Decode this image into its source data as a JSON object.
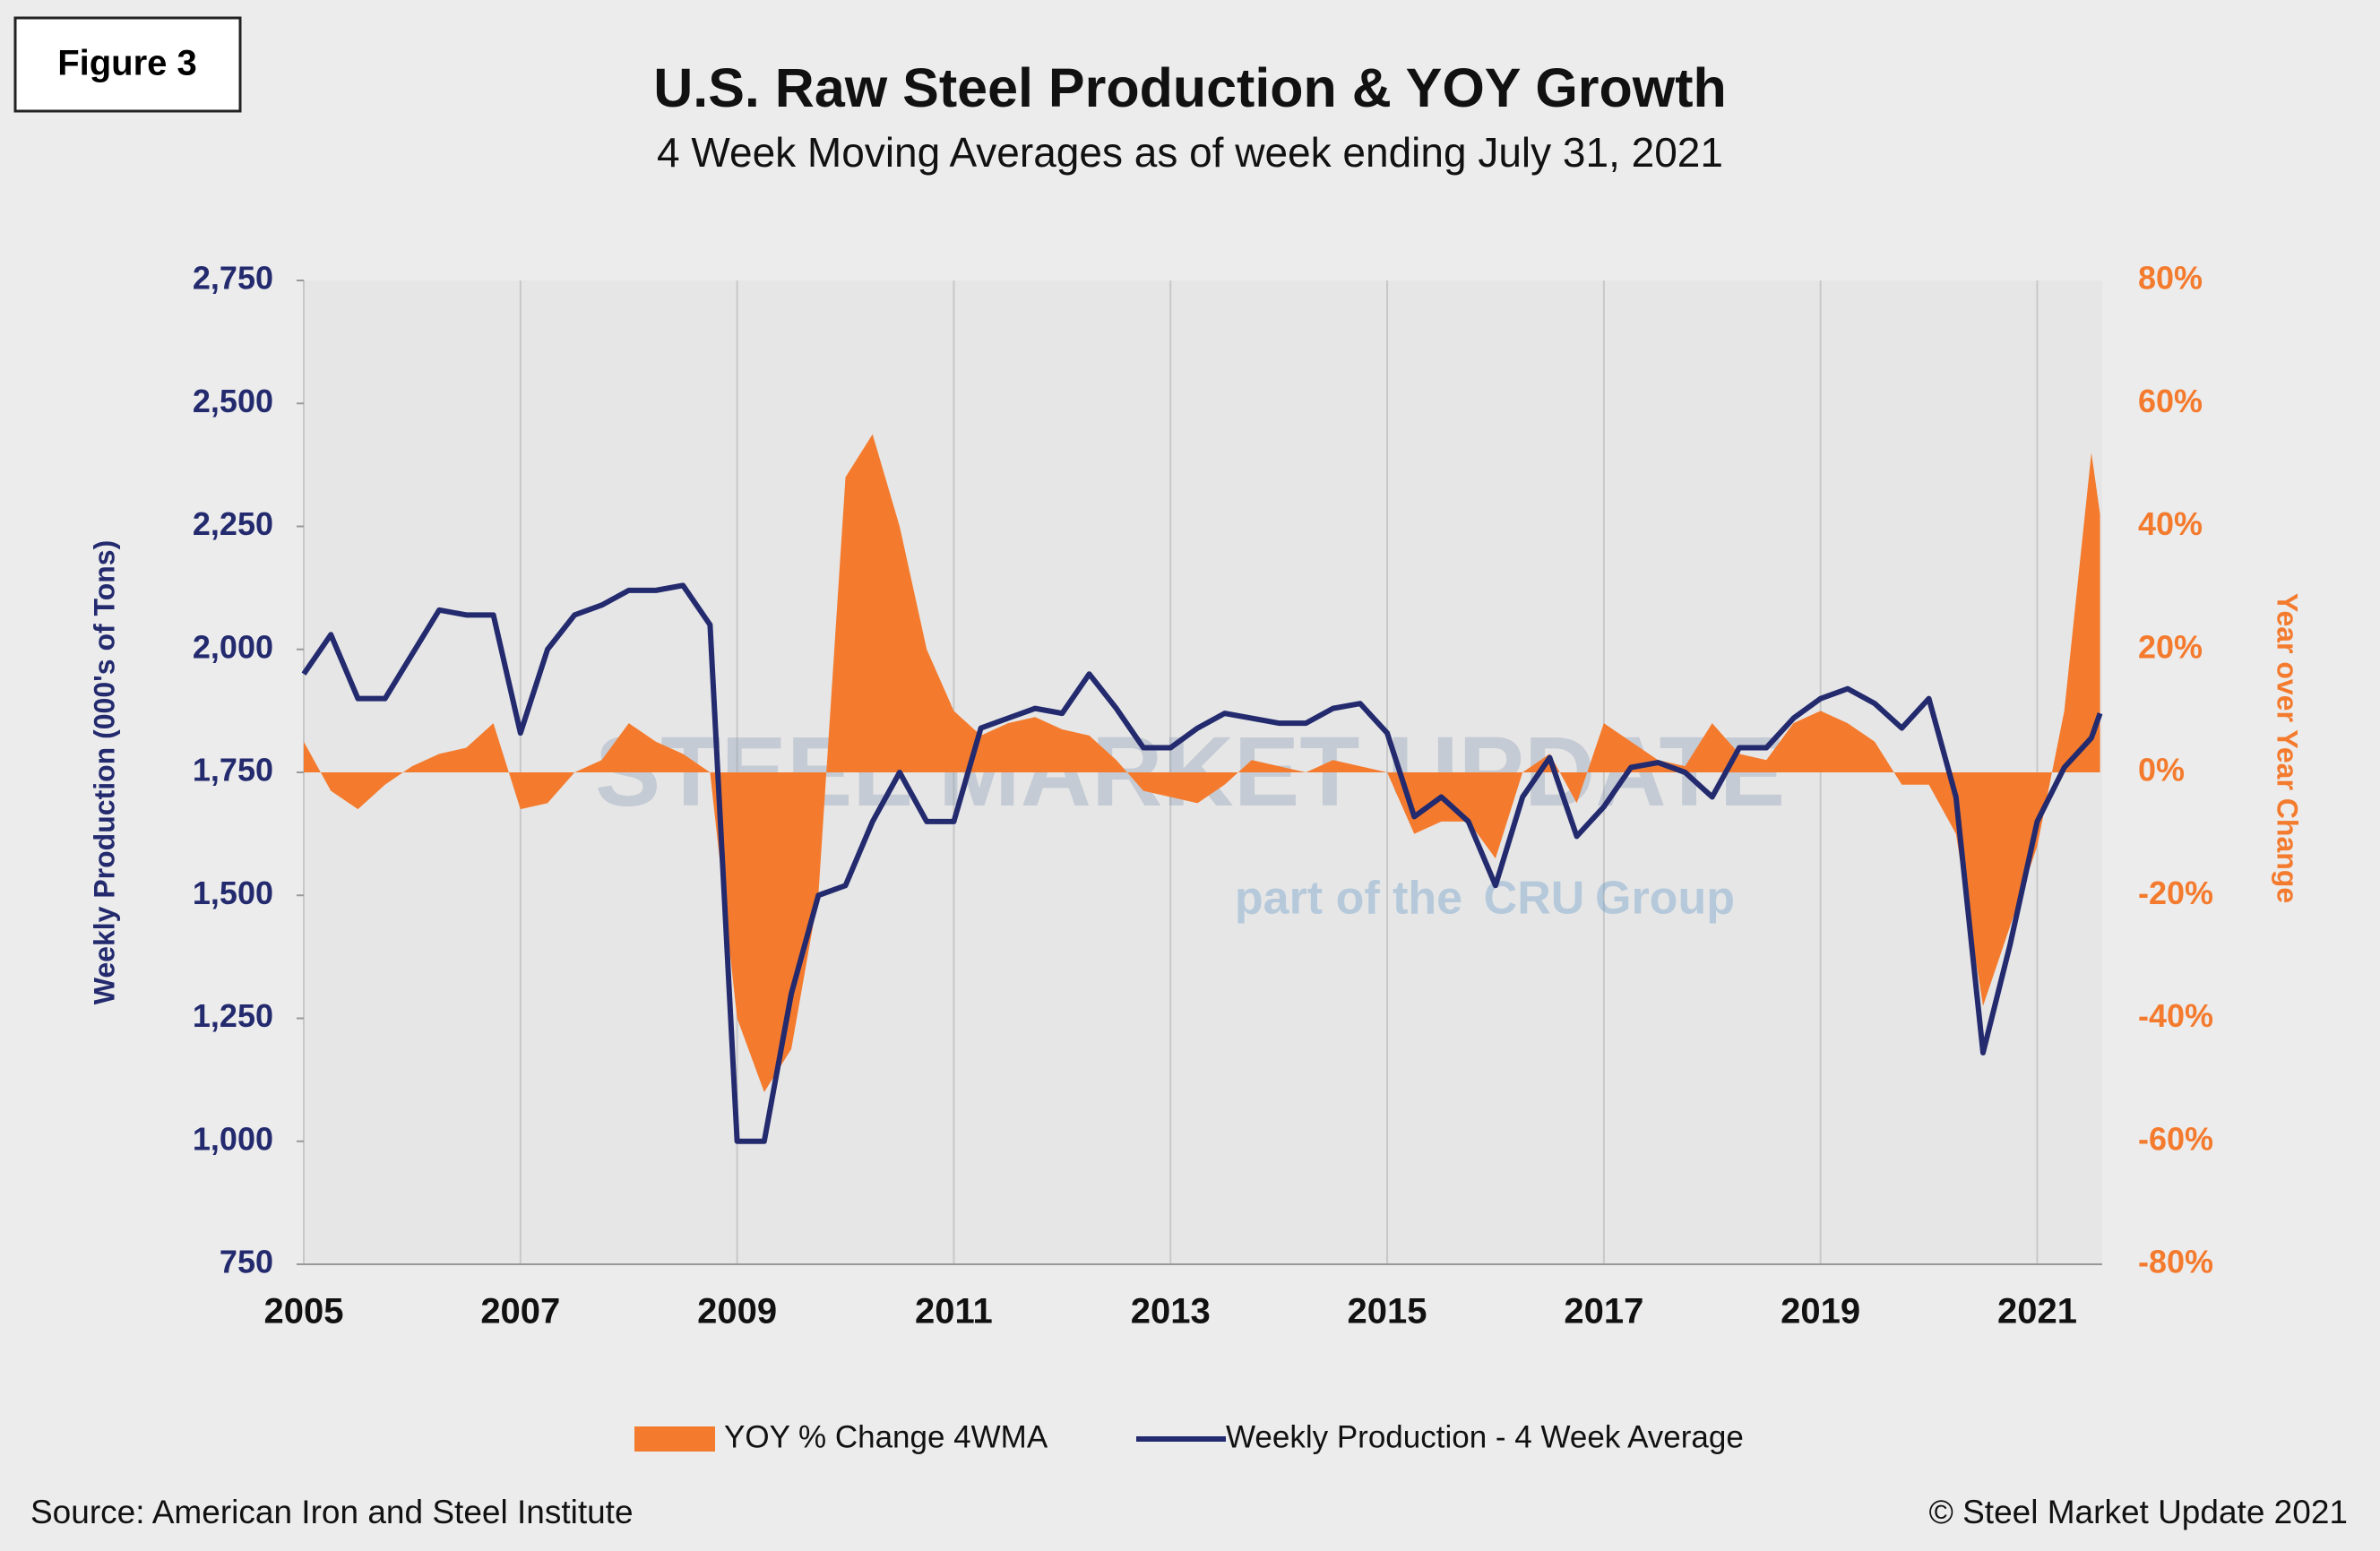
{
  "chart_data": {
    "type": "area_line",
    "figure_label": "Figure 3",
    "title": "U.S. Raw Steel Production & YOY Growth",
    "subtitle": "4 Week Moving Averages as of week ending July 31, 2021",
    "y_label": "Weekly Production (000's of Tons)",
    "y2_label": "Year over Year Change",
    "source": "Source: American Iron and Steel Institute",
    "copyright": "© Steel Market Update 2021",
    "watermark": [
      "STEEL MARKET UPDATE",
      "part of the",
      "CRU",
      "Group"
    ],
    "grid": true,
    "legend": "bottom",
    "xlim": [
      2005,
      2021.6
    ],
    "xticks": [
      2005,
      2007,
      2009,
      2011,
      2013,
      2015,
      2017,
      2019,
      2021
    ],
    "ylim": [
      750,
      2750
    ],
    "yticks": [
      {
        "value": 750,
        "label": "750"
      },
      {
        "value": 1000,
        "label": "1,000"
      },
      {
        "value": 1250,
        "label": "1,250"
      },
      {
        "value": 1500,
        "label": "1,500"
      },
      {
        "value": 1750,
        "label": "1,750"
      },
      {
        "value": 2000,
        "label": "2,000"
      },
      {
        "value": 2250,
        "label": "2,250"
      },
      {
        "value": 2500,
        "label": "2,500"
      },
      {
        "value": 2750,
        "label": "2,750"
      }
    ],
    "y2lim": [
      -80,
      80
    ],
    "y2ticks": [
      {
        "value": -80,
        "label": "-80%"
      },
      {
        "value": -60,
        "label": "-60%"
      },
      {
        "value": -40,
        "label": "-40%"
      },
      {
        "value": -20,
        "label": "-20%"
      },
      {
        "value": 0,
        "label": "0%"
      },
      {
        "value": 20,
        "label": "20%"
      },
      {
        "value": 40,
        "label": "40%"
      },
      {
        "value": 60,
        "label": "60%"
      },
      {
        "value": 80,
        "label": "80%"
      }
    ],
    "x": [
      2005,
      2005.25,
      2005.5,
      2005.75,
      2006,
      2006.25,
      2006.5,
      2006.75,
      2007,
      2007.25,
      2007.5,
      2007.75,
      2008,
      2008.25,
      2008.5,
      2008.75,
      2009,
      2009.25,
      2009.5,
      2009.75,
      2010,
      2010.25,
      2010.5,
      2010.75,
      2011,
      2011.25,
      2011.5,
      2011.75,
      2012,
      2012.25,
      2012.5,
      2012.75,
      2013,
      2013.25,
      2013.5,
      2013.75,
      2014,
      2014.25,
      2014.5,
      2014.75,
      2015,
      2015.25,
      2015.5,
      2015.75,
      2016,
      2016.25,
      2016.5,
      2016.75,
      2017,
      2017.25,
      2017.5,
      2017.75,
      2018,
      2018.25,
      2018.5,
      2018.75,
      2019,
      2019.25,
      2019.5,
      2019.75,
      2020,
      2020.25,
      2020.5,
      2020.75,
      2021,
      2021.25,
      2021.5,
      2021.58
    ],
    "series": [
      {
        "name": "YOY % Change 4WMA",
        "kind": "area",
        "axis": "y2",
        "color": "#f47b2e",
        "values": [
          5,
          -3,
          -6,
          -2,
          1,
          3,
          4,
          8,
          -6,
          -5,
          0,
          2,
          8,
          5,
          3,
          0,
          -40,
          -52,
          -45,
          -20,
          48,
          55,
          40,
          20,
          10,
          6,
          8,
          9,
          7,
          6,
          2,
          -3,
          -4,
          -5,
          -2,
          2,
          1,
          0,
          2,
          1,
          0,
          -10,
          -8,
          -8,
          -14,
          0,
          3,
          -5,
          8,
          5,
          2,
          1,
          8,
          3,
          2,
          8,
          10,
          8,
          5,
          -2,
          -2,
          -10,
          -38,
          -25,
          -12,
          10,
          52,
          42
        ]
      },
      {
        "name": "Weekly Production - 4 Week Average",
        "kind": "line",
        "axis": "y",
        "color": "#232a6e",
        "values": [
          1950,
          2030,
          1900,
          1900,
          1990,
          2080,
          2070,
          2070,
          1830,
          2000,
          2070,
          2090,
          2120,
          2120,
          2130,
          2050,
          1000,
          1000,
          1300,
          1500,
          1520,
          1650,
          1750,
          1650,
          1650,
          1840,
          1860,
          1880,
          1870,
          1950,
          1880,
          1800,
          1800,
          1840,
          1870,
          1860,
          1850,
          1850,
          1880,
          1890,
          1830,
          1660,
          1700,
          1650,
          1520,
          1700,
          1780,
          1620,
          1680,
          1760,
          1770,
          1750,
          1700,
          1800,
          1800,
          1860,
          1900,
          1920,
          1890,
          1840,
          1900,
          1700,
          1180,
          1400,
          1650,
          1760,
          1820,
          1870
        ]
      }
    ]
  }
}
